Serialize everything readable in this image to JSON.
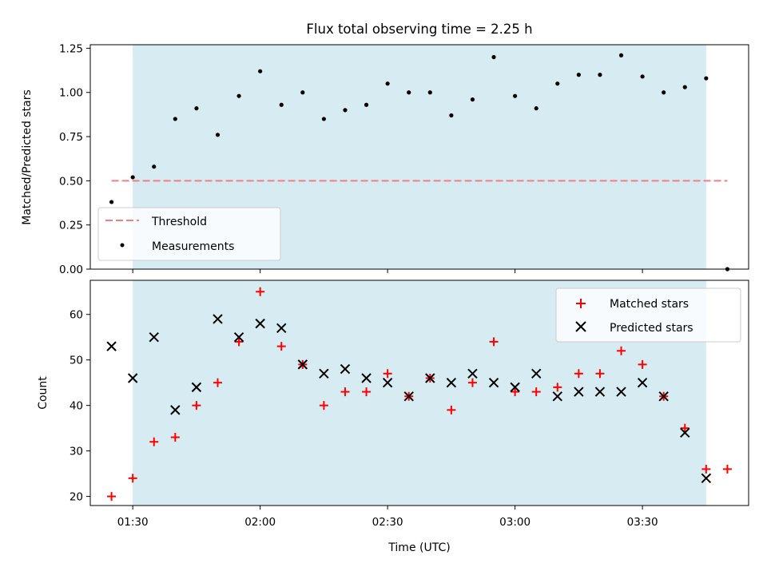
{
  "chart_data": [
    {
      "type": "scatter",
      "title": "Flux total observing time = 2.25 h",
      "xlabel": "",
      "ylabel": "Matched/Predicted stars",
      "ylim": [
        0,
        1.27
      ],
      "yticks": [
        "0.00",
        "0.25",
        "0.50",
        "0.75",
        "1.00",
        "1.25"
      ],
      "xlim": [
        "01:20",
        "03:55"
      ],
      "highlight_span": [
        "01:30",
        "03:45"
      ],
      "highlight_color": "#add8e6",
      "legend_position": "lower-left",
      "threshold": {
        "name": "Threshold",
        "y": 0.5,
        "x_range": [
          "01:25",
          "03:50"
        ],
        "color": "#f08080"
      },
      "series": [
        {
          "name": "Measurements",
          "color": "#000000",
          "points": [
            [
              "01:25",
              0.38
            ],
            [
              "01:30",
              0.52
            ],
            [
              "01:35",
              0.58
            ],
            [
              "01:40",
              0.85
            ],
            [
              "01:45",
              0.91
            ],
            [
              "01:50",
              0.76
            ],
            [
              "01:55",
              0.98
            ],
            [
              "02:00",
              1.12
            ],
            [
              "02:05",
              0.93
            ],
            [
              "02:10",
              1.0
            ],
            [
              "02:15",
              0.85
            ],
            [
              "02:20",
              0.9
            ],
            [
              "02:25",
              0.93
            ],
            [
              "02:30",
              1.05
            ],
            [
              "02:35",
              1.0
            ],
            [
              "02:40",
              1.0
            ],
            [
              "02:45",
              0.87
            ],
            [
              "02:50",
              0.96
            ],
            [
              "02:55",
              1.2
            ],
            [
              "03:00",
              0.98
            ],
            [
              "03:05",
              0.91
            ],
            [
              "03:10",
              1.05
            ],
            [
              "03:15",
              1.1
            ],
            [
              "03:20",
              1.1
            ],
            [
              "03:25",
              1.21
            ],
            [
              "03:30",
              1.09
            ],
            [
              "03:35",
              1.0
            ],
            [
              "03:40",
              1.03
            ],
            [
              "03:45",
              1.08
            ],
            [
              "03:50",
              0.0
            ]
          ]
        }
      ]
    },
    {
      "type": "scatter",
      "title": "",
      "xlabel": "Time (UTC)",
      "ylabel": "Count",
      "ylim": [
        18,
        67.5
      ],
      "yticks": [
        "20",
        "30",
        "40",
        "50",
        "60"
      ],
      "xlim": [
        "01:20",
        "03:55"
      ],
      "xticks": [
        "01:30",
        "02:00",
        "02:30",
        "03:00",
        "03:30"
      ],
      "highlight_span": [
        "01:30",
        "03:45"
      ],
      "highlight_color": "#add8e6",
      "legend_position": "upper-right",
      "series": [
        {
          "name": "Matched stars",
          "marker": "plus",
          "color": "#ff0000",
          "points": [
            [
              "01:25",
              20
            ],
            [
              "01:30",
              24
            ],
            [
              "01:35",
              32
            ],
            [
              "01:40",
              33
            ],
            [
              "01:45",
              40
            ],
            [
              "01:50",
              45
            ],
            [
              "01:55",
              54
            ],
            [
              "02:00",
              65
            ],
            [
              "02:05",
              53
            ],
            [
              "02:10",
              49
            ],
            [
              "02:15",
              40
            ],
            [
              "02:20",
              43
            ],
            [
              "02:25",
              43
            ],
            [
              "02:30",
              47
            ],
            [
              "02:35",
              42
            ],
            [
              "02:40",
              46
            ],
            [
              "02:45",
              39
            ],
            [
              "02:50",
              45
            ],
            [
              "02:55",
              54
            ],
            [
              "03:00",
              43
            ],
            [
              "03:05",
              43
            ],
            [
              "03:10",
              44
            ],
            [
              "03:15",
              47
            ],
            [
              "03:20",
              47
            ],
            [
              "03:25",
              52
            ],
            [
              "03:30",
              49
            ],
            [
              "03:35",
              42
            ],
            [
              "03:40",
              35
            ],
            [
              "03:45",
              26
            ],
            [
              "03:50",
              26
            ]
          ]
        },
        {
          "name": "Predicted stars",
          "marker": "x",
          "color": "#000000",
          "points": [
            [
              "01:25",
              53
            ],
            [
              "01:30",
              46
            ],
            [
              "01:35",
              55
            ],
            [
              "01:40",
              39
            ],
            [
              "01:45",
              44
            ],
            [
              "01:50",
              59
            ],
            [
              "01:55",
              55
            ],
            [
              "02:00",
              58
            ],
            [
              "02:05",
              57
            ],
            [
              "02:10",
              49
            ],
            [
              "02:15",
              47
            ],
            [
              "02:20",
              48
            ],
            [
              "02:25",
              46
            ],
            [
              "02:30",
              45
            ],
            [
              "02:35",
              42
            ],
            [
              "02:40",
              46
            ],
            [
              "02:45",
              45
            ],
            [
              "02:50",
              47
            ],
            [
              "02:55",
              45
            ],
            [
              "03:00",
              44
            ],
            [
              "03:05",
              47
            ],
            [
              "03:10",
              42
            ],
            [
              "03:15",
              43
            ],
            [
              "03:20",
              43
            ],
            [
              "03:25",
              43
            ],
            [
              "03:30",
              45
            ],
            [
              "03:35",
              42
            ],
            [
              "03:40",
              34
            ],
            [
              "03:45",
              24
            ]
          ]
        }
      ]
    }
  ]
}
